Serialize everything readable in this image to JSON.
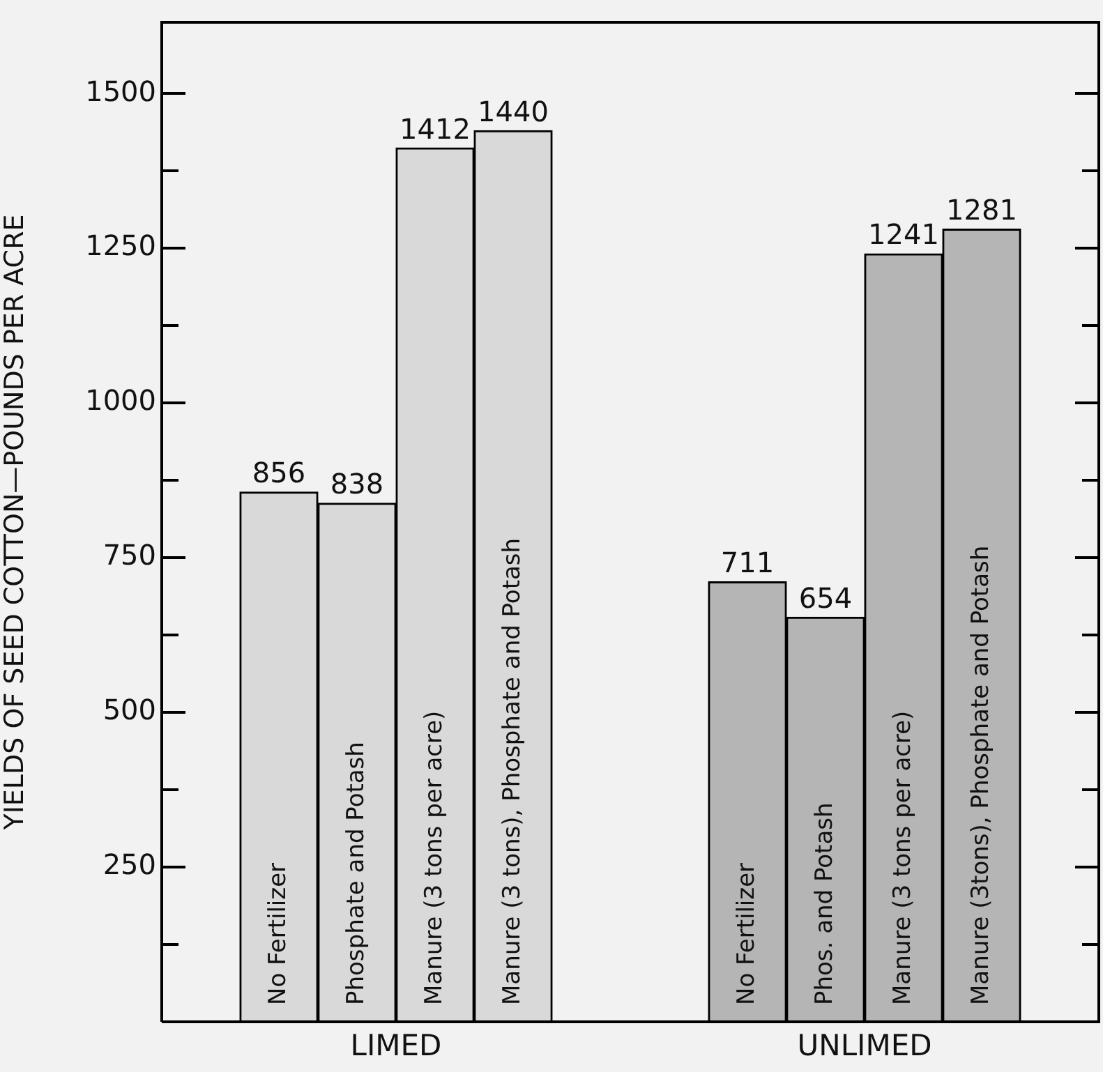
{
  "chart_data": {
    "type": "bar",
    "ylabel": "YIELDS OF SEED COTTON—POUNDS PER ACRE",
    "categories": [
      null,
      "No Fertilizer",
      "Phosphate and Potash",
      "Manure (3 tons per acre)",
      "Manure (3 tons), Phosphate and Potash",
      null,
      null,
      "No Fertilizer",
      "Phos. and Potash",
      "Manure (3 tons per acre)",
      "Manure (3tons), Phosphate and Potash",
      null
    ],
    "series": [
      {
        "name": "LIMED",
        "color": "#d9d9d9",
        "values": [
          null,
          856,
          838,
          1412,
          1440,
          null,
          null,
          null,
          null,
          null,
          null,
          null
        ]
      },
      {
        "name": "UNLIMED",
        "color": "#b5b5b5",
        "values": [
          null,
          null,
          null,
          null,
          null,
          null,
          null,
          711,
          654,
          1241,
          1281,
          null
        ]
      }
    ],
    "ylim": [
      0,
      1615
    ],
    "yticks": [
      {
        "value": 125,
        "label": null
      },
      250,
      {
        "value": 375,
        "label": null
      },
      500,
      {
        "value": 625,
        "label": null
      },
      750,
      {
        "value": 875,
        "label": null
      },
      1000,
      {
        "value": 1125,
        "label": null
      },
      1250,
      {
        "value": 1375,
        "label": null
      },
      1500
    ],
    "data_labels": true,
    "grid": false,
    "legend": false
  }
}
